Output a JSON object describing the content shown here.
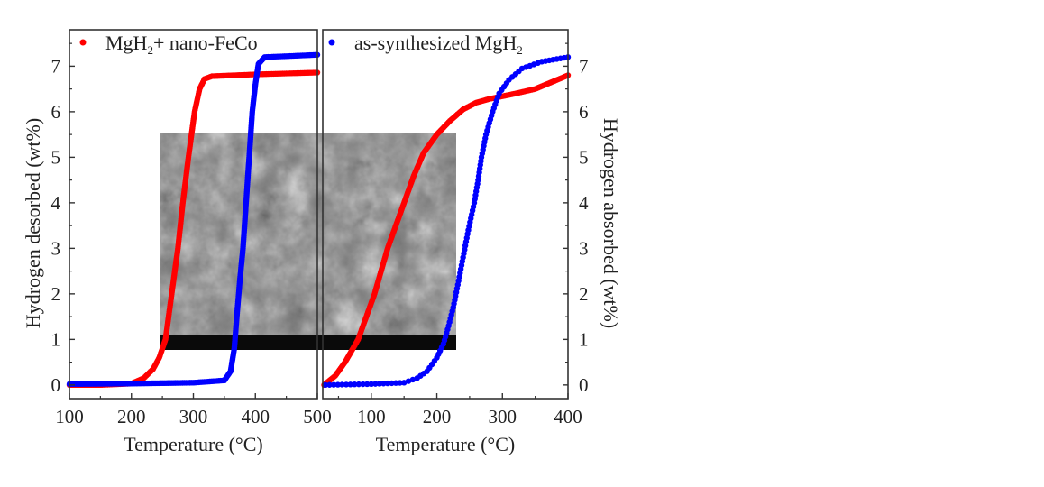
{
  "chart_data": [
    {
      "type": "scatter",
      "panel": "left",
      "xlabel": "Temperature (°C)",
      "ylabel": "Hydrogen desorbed (wt%)",
      "xlim": [
        100,
        500
      ],
      "ylim": [
        -0.3,
        7.8
      ],
      "xticks": [
        100,
        200,
        300,
        400,
        500
      ],
      "yticks": [
        0,
        1,
        2,
        3,
        4,
        5,
        6,
        7
      ],
      "legend": {
        "position": "top-left",
        "label_main": "MgH",
        "label_sub": "2",
        "label_rest": "+ nano-FeCo",
        "color": "#ff0000"
      },
      "series": [
        {
          "name": "MgH2+ nano-FeCo",
          "color": "#ff0000",
          "x": [
            100,
            150,
            200,
            220,
            235,
            245,
            255,
            265,
            275,
            283,
            292,
            302,
            310,
            318,
            330,
            400,
            500
          ],
          "y": [
            0,
            0,
            0.03,
            0.15,
            0.35,
            0.6,
            1.0,
            2.0,
            3.0,
            4.0,
            5.0,
            6.0,
            6.5,
            6.72,
            6.78,
            6.82,
            6.86
          ]
        },
        {
          "name": "as-synthesized MgH2",
          "color": "#0000ff",
          "x": [
            100,
            200,
            300,
            350,
            360,
            366,
            370,
            375,
            380,
            385,
            390,
            395,
            400,
            405,
            415,
            450,
            500
          ],
          "y": [
            0.02,
            0.03,
            0.05,
            0.1,
            0.3,
            0.8,
            1.5,
            2.3,
            3.0,
            4.0,
            5.0,
            6.0,
            6.6,
            7.05,
            7.2,
            7.22,
            7.25
          ]
        }
      ]
    },
    {
      "type": "scatter",
      "panel": "right",
      "xlabel": "Temperature (°C)",
      "ylabel": "Hydrogen absorbed (wt%)",
      "xlim": [
        26,
        400
      ],
      "ylim": [
        -0.3,
        7.8
      ],
      "xticks": [
        100,
        200,
        300,
        400
      ],
      "yticks": [
        0,
        1,
        2,
        3,
        4,
        5,
        6,
        7
      ],
      "legend": {
        "position": "top-left",
        "label_main": "as-synthesized MgH",
        "label_sub": "2",
        "label_rest": "",
        "color": "#0000ff"
      },
      "series": [
        {
          "name": "MgH2+ nano-FeCo",
          "color": "#ff0000",
          "x": [
            28,
            45,
            60,
            80,
            95,
            105,
            125,
            150,
            165,
            180,
            200,
            220,
            240,
            260,
            280,
            320,
            350,
            370,
            400
          ],
          "y": [
            0,
            0.2,
            0.5,
            1.0,
            1.6,
            2.0,
            3.0,
            4.0,
            4.6,
            5.1,
            5.5,
            5.8,
            6.05,
            6.2,
            6.28,
            6.4,
            6.5,
            6.62,
            6.8
          ]
        },
        {
          "name": "as-synthesized MgH2",
          "color": "#0000ff",
          "x": [
            30,
            100,
            150,
            170,
            185,
            200,
            210,
            218,
            225,
            232,
            240,
            248,
            257,
            263,
            268,
            275,
            285,
            295,
            310,
            330,
            360,
            400
          ],
          "y": [
            0,
            0.02,
            0.05,
            0.15,
            0.3,
            0.6,
            0.9,
            1.3,
            1.7,
            2.2,
            2.8,
            3.4,
            4.0,
            4.5,
            5.0,
            5.5,
            6.0,
            6.4,
            6.7,
            6.95,
            7.1,
            7.2
          ]
        }
      ]
    }
  ]
}
